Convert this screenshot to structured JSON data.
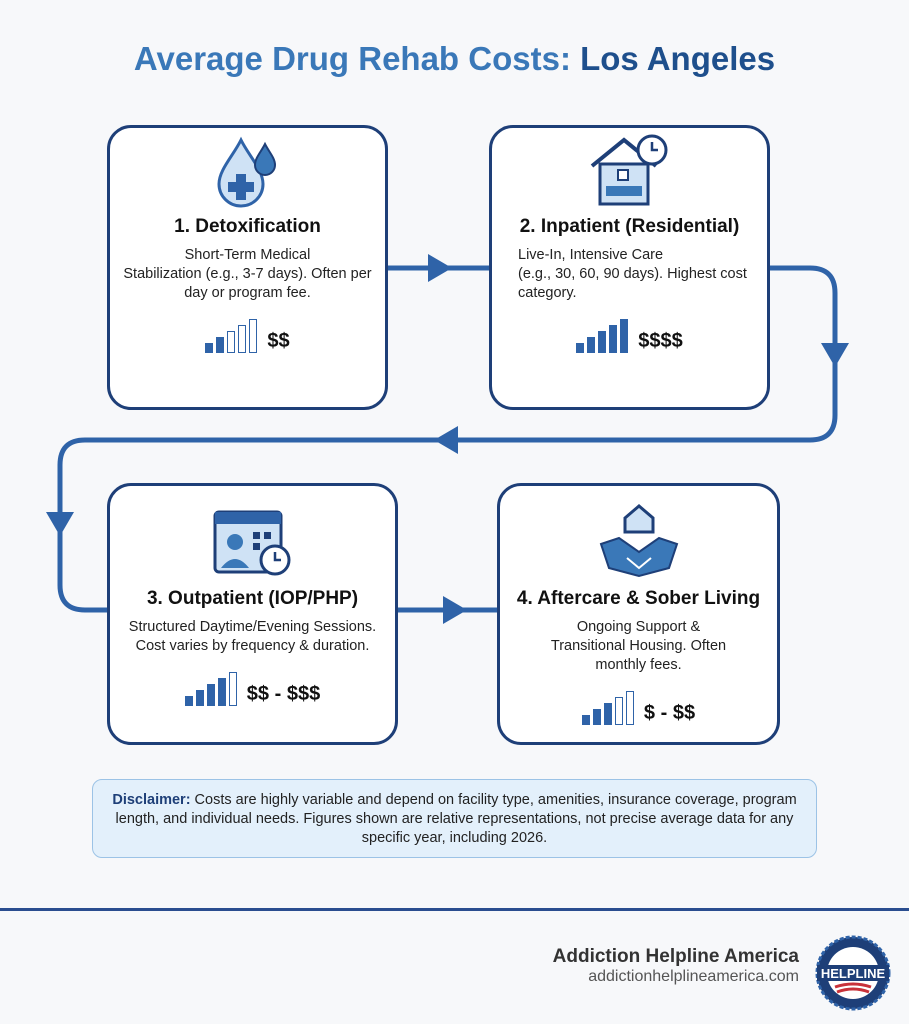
{
  "title": {
    "part1": "Average Drug Rehab Costs:",
    "part2": "Los Angeles"
  },
  "steps": [
    {
      "title": "1. Detoxification",
      "desc_bold": "Short-Term Medical",
      "desc": "Stabilization (e.g., 3-7 days). Often per day or program fee.",
      "cost": "$$",
      "icon": "blood-drop-medical-icon",
      "level": 2
    },
    {
      "title": "2. Inpatient (Residential)",
      "desc_bold": "Live-In, Intensive Care",
      "desc": "(e.g., 30, 60, 90 days). Highest cost category.",
      "cost": "$$$$",
      "icon": "house-bed-clock-icon",
      "level": 5
    },
    {
      "title": "3. Outpatient (IOP/PHP)",
      "desc_bold": "",
      "desc": "Structured Daytime/Evening Sessions. Cost varies by frequency & duration.",
      "cost": "$$ - $$$",
      "icon": "calendar-person-clock-icon",
      "level": 4
    },
    {
      "title": "4. Aftercare & Sober Living",
      "desc_bold": "",
      "desc": "Ongoing Support & Transitional Housing. Often monthly fees.",
      "cost": "$ - $$",
      "icon": "handshake-house-icon",
      "level": 3
    }
  ],
  "disclaimer": {
    "label": "Disclaimer:",
    "text": " Costs are highly variable and depend on facility type, amenities, insurance coverage, program length, and individual needs. Figures shown are relative representations, not precise average data for any specific year, including 2026."
  },
  "footer": {
    "name": "Addiction Helpline America",
    "url": "addictionhelplineamerica.com",
    "logo_text": "ADDICTION HELPLINE AMERICA"
  },
  "colors": {
    "primary": "#1e3f78",
    "accent": "#3a78b8",
    "connector": "#2f63a8"
  }
}
